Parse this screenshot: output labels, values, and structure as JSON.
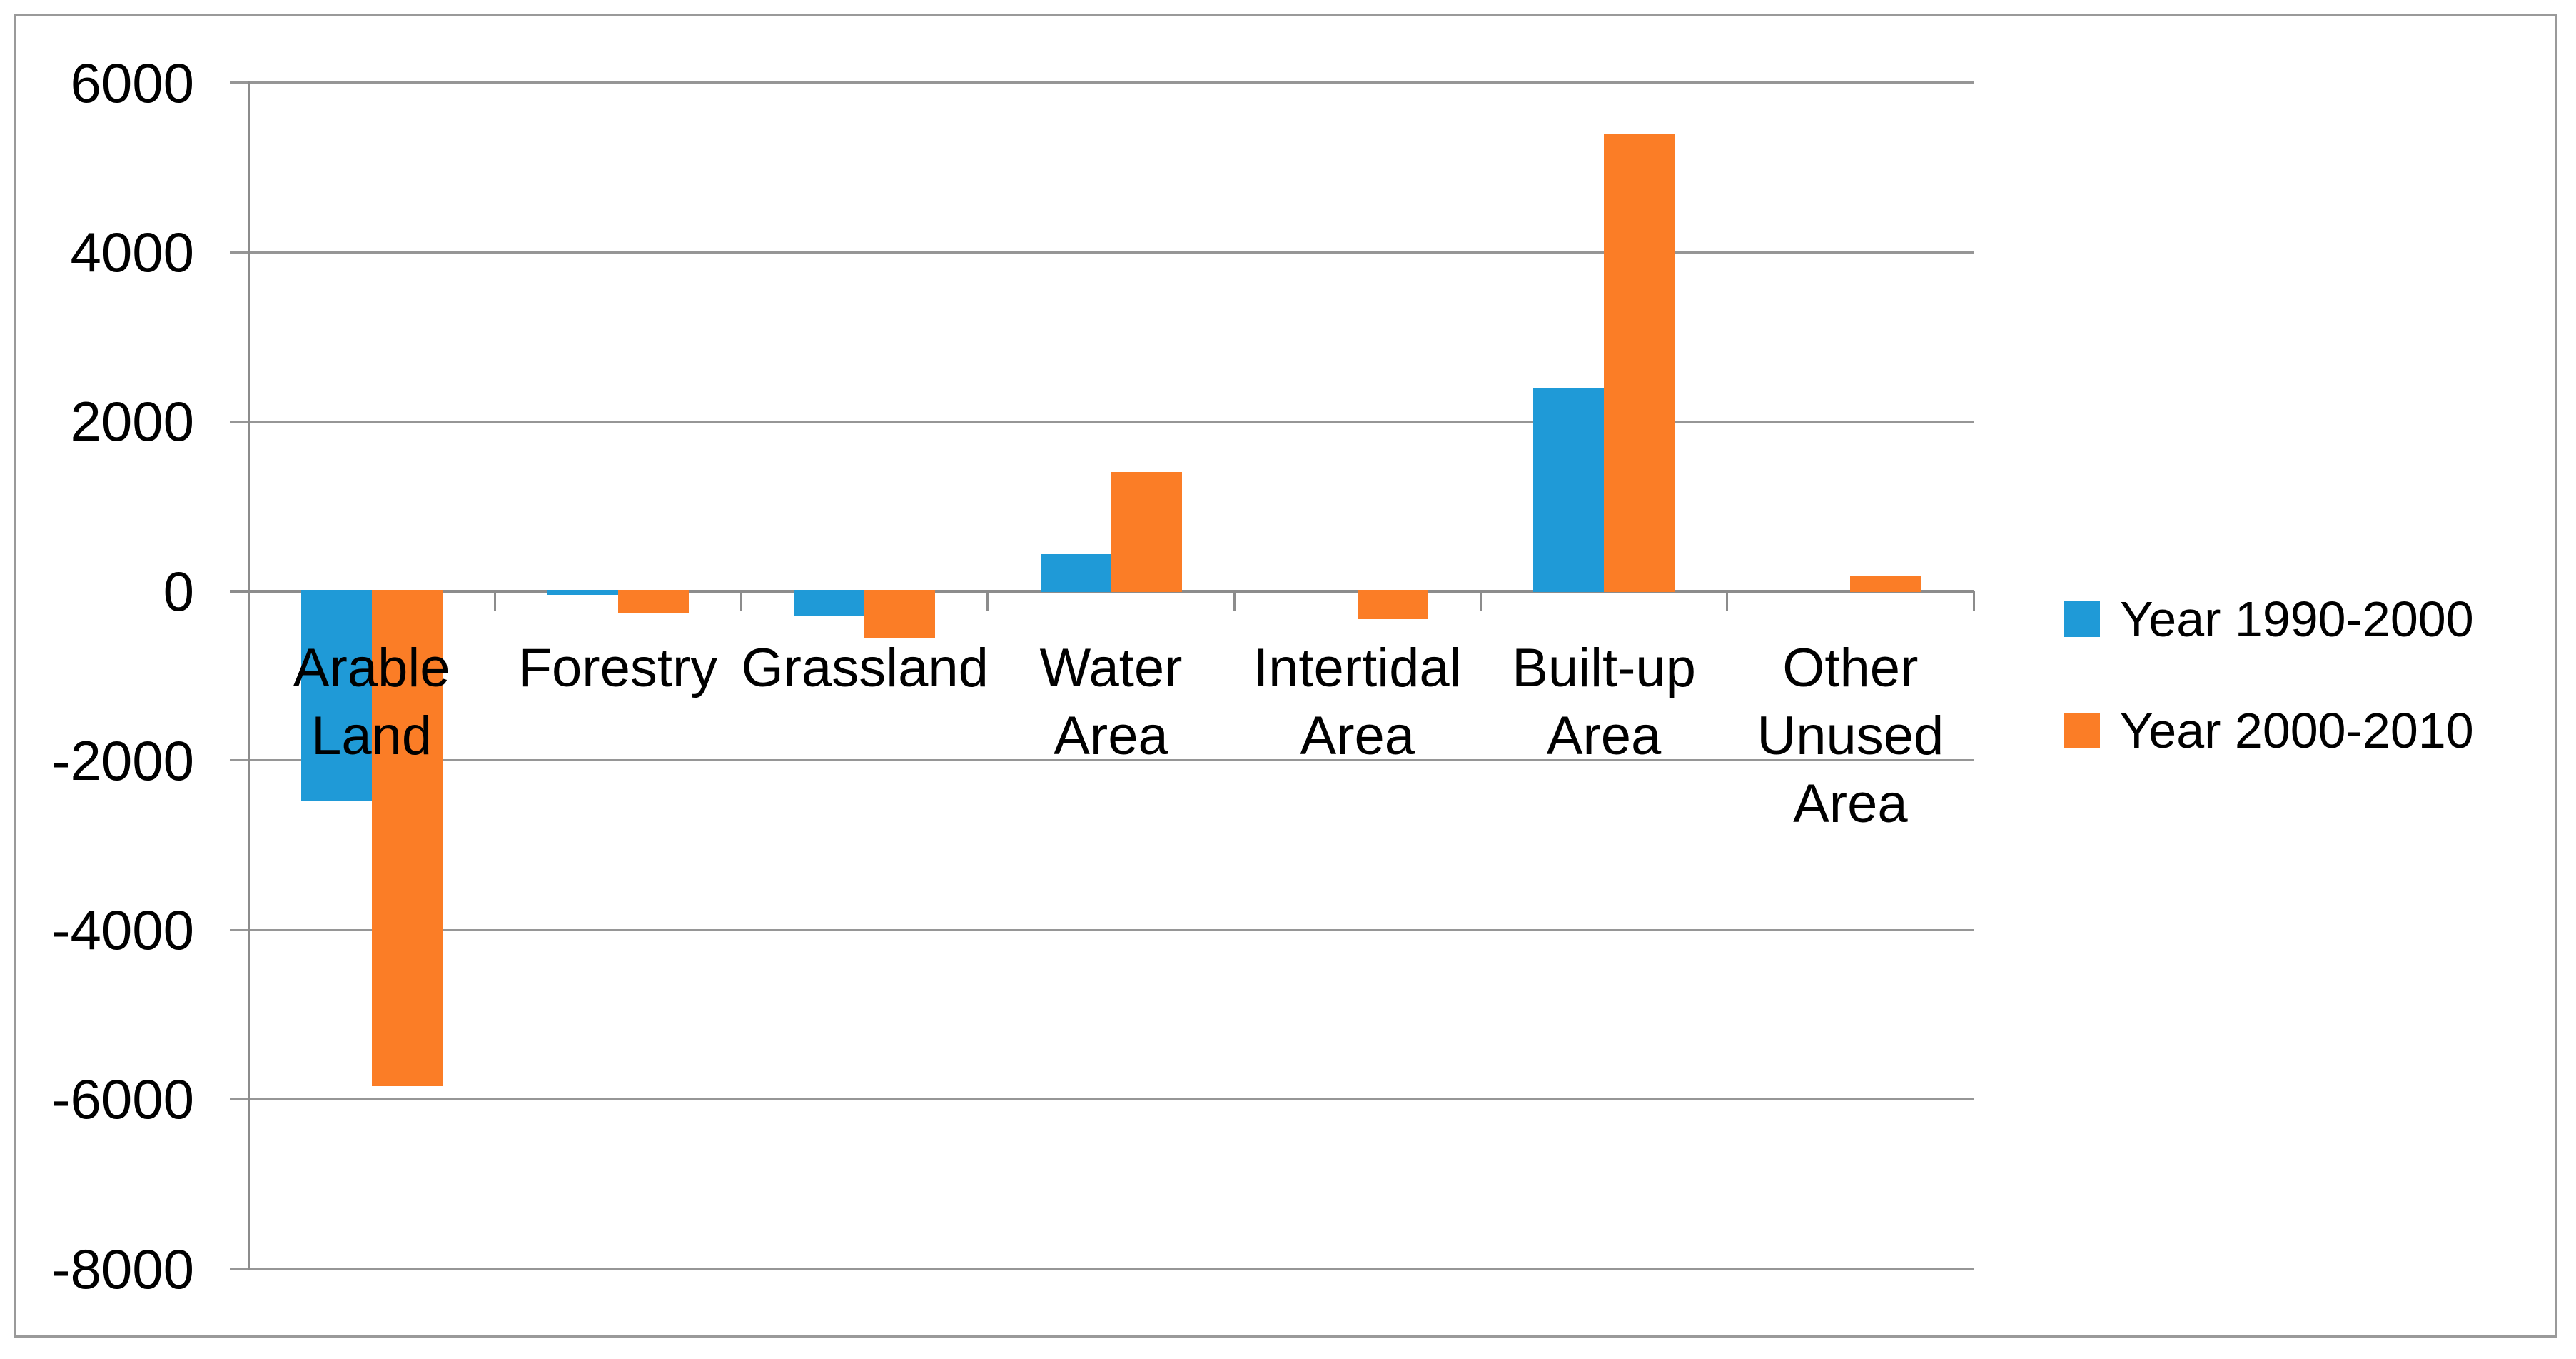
{
  "chart_data": {
    "type": "bar",
    "title": "",
    "categories": [
      "Arable Land",
      "Forestry",
      "Grassland",
      "Water Area",
      "Intertidal Area",
      "Built-up Area",
      "Other Unused Area"
    ],
    "category_label_lines": [
      [
        "Arable",
        "Land"
      ],
      [
        "Forestry"
      ],
      [
        "Grassland"
      ],
      [
        "Water",
        "Area"
      ],
      [
        "Intertidal",
        "Area"
      ],
      [
        "Built-up",
        "Area"
      ],
      [
        "Other",
        "Unused",
        "Area"
      ]
    ],
    "series": [
      {
        "name": "Year 1990-2000",
        "color": "#1F9AD7",
        "values": [
          -2480,
          -50,
          -290,
          430,
          0,
          2400,
          0
        ]
      },
      {
        "name": "Year 2000-2010",
        "color": "#FB7D26",
        "values": [
          -5850,
          -260,
          -560,
          1400,
          -330,
          5400,
          180
        ]
      }
    ],
    "y_axis": {
      "min": -8000,
      "max": 6000,
      "step": 2000,
      "tick_labels": [
        "6000",
        "4000",
        "2000",
        "0",
        "-2000",
        "-4000",
        "-6000",
        "-8000"
      ]
    },
    "xlabel": "",
    "ylabel": "",
    "grid": true,
    "legend_position": "right",
    "colors": {
      "gridline": "#969696",
      "axis": "#8C8C8C",
      "border": "#9A9A9A",
      "text": "#000000",
      "background": "#FFFFFF"
    }
  }
}
